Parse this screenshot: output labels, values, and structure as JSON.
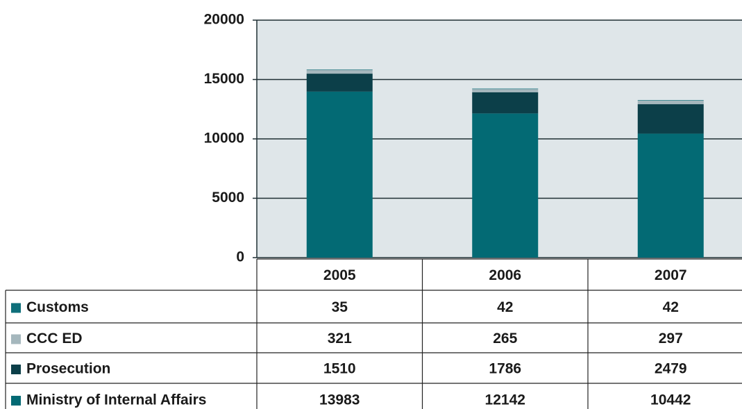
{
  "chart_data": {
    "type": "bar",
    "stacked": true,
    "categories": [
      "2005",
      "2006",
      "2007"
    ],
    "series": [
      {
        "name": "Customs",
        "color": "#0f6f7a",
        "values": [
          35,
          42,
          42
        ]
      },
      {
        "name": "CCC ED",
        "color": "#a5b7bd",
        "values": [
          321,
          265,
          297
        ]
      },
      {
        "name": "Prosecution",
        "color": "#0c3f49",
        "values": [
          1510,
          1786,
          2479
        ]
      },
      {
        "name": "Ministry of Internal Affairs",
        "color": "#036a74",
        "values": [
          13983,
          12142,
          10442
        ]
      }
    ],
    "ylim": [
      0,
      20000
    ],
    "yticks": [
      0,
      5000,
      10000,
      15000,
      20000
    ],
    "grid": true
  }
}
